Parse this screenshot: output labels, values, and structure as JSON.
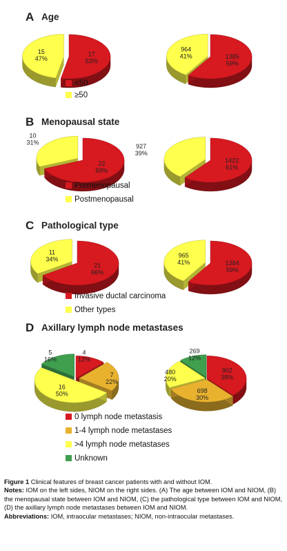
{
  "colors": {
    "red": "#d71920",
    "yellow": "#ffff4d",
    "orange": "#e8b22f",
    "green": "#3f9f4f"
  },
  "chart_data": [
    {
      "type": "pie",
      "letter": "A",
      "title": "Age",
      "legend": [
        {
          "label": "<50",
          "color": "#d71920"
        },
        {
          "label": "≥50",
          "color": "#ffff4d"
        }
      ],
      "pies": [
        {
          "group": "IOM",
          "slices": [
            {
              "category": "<50",
              "value": 17,
              "percent": "53%"
            },
            {
              "category": "≥50",
              "value": 15,
              "percent": "47%"
            }
          ]
        },
        {
          "group": "NIOM",
          "slices": [
            {
              "category": "<50",
              "value": 1385,
              "percent": "59%"
            },
            {
              "category": "≥50",
              "value": 964,
              "percent": "41%"
            }
          ]
        }
      ]
    },
    {
      "type": "pie",
      "letter": "B",
      "title": "Menopausal state",
      "legend": [
        {
          "label": "Premenopausal",
          "color": "#d71920"
        },
        {
          "label": "Postmenopausal",
          "color": "#ffff4d"
        }
      ],
      "pies": [
        {
          "group": "IOM",
          "slices": [
            {
              "category": "Premenopausal",
              "value": 22,
              "percent": "69%"
            },
            {
              "category": "Postmenopausal",
              "value": 10,
              "percent": "31%"
            }
          ]
        },
        {
          "group": "NIOM",
          "slices": [
            {
              "category": "Premenopausal",
              "value": 1422,
              "percent": "61%"
            },
            {
              "category": "Postmenopausal",
              "value": 927,
              "percent": "39%"
            }
          ]
        }
      ]
    },
    {
      "type": "pie",
      "letter": "C",
      "title": "Pathological type",
      "legend": [
        {
          "label": "Invasive ductal carcinoma",
          "color": "#d71920"
        },
        {
          "label": "Other types",
          "color": "#ffff4d"
        }
      ],
      "pies": [
        {
          "group": "IOM",
          "slices": [
            {
              "category": "Invasive ductal carcinoma",
              "value": 21,
              "percent": "66%"
            },
            {
              "category": "Other types",
              "value": 11,
              "percent": "34%"
            }
          ]
        },
        {
          "group": "NIOM",
          "slices": [
            {
              "category": "Invasive ductal carcinoma",
              "value": 1384,
              "percent": "59%"
            },
            {
              "category": "Other types",
              "value": 965,
              "percent": "41%"
            }
          ]
        }
      ]
    },
    {
      "type": "pie",
      "letter": "D",
      "title": "Axillary lymph node metastases",
      "legend": [
        {
          "label": "0 lymph node metastasis",
          "color": "#d71920"
        },
        {
          "label": "1-4 lymph node metastases",
          "color": "#e8b22f"
        },
        {
          "label": ">4 lymph node metastases",
          "color": "#ffff4d"
        },
        {
          "label": "Unknown",
          "color": "#3f9f4f"
        }
      ],
      "pies": [
        {
          "group": "IOM",
          "slices": [
            {
              "category": "0 lymph node metastasis",
              "value": 4,
              "percent": "12%"
            },
            {
              "category": "1-4 lymph node metastases",
              "value": 7,
              "percent": "22%"
            },
            {
              "category": ">4 lymph node metastases",
              "value": 16,
              "percent": "50%"
            },
            {
              "category": "Unknown",
              "value": 5,
              "percent": "16%"
            }
          ]
        },
        {
          "group": "NIOM",
          "slices": [
            {
              "category": "0 lymph node metastasis",
              "value": 902,
              "percent": "38%"
            },
            {
              "category": "1-4 lymph node metastases",
              "value": 698,
              "percent": "30%"
            },
            {
              "category": ">4 lymph node metastases",
              "value": 480,
              "percent": "20%"
            },
            {
              "category": "Unknown",
              "value": 269,
              "percent": "12%"
            }
          ]
        }
      ]
    }
  ],
  "caption": {
    "figure_label": "Figure 1",
    "figure_title": "Clinical features of breast cancer patients with and without IOM.",
    "notes_label": "Notes:",
    "notes_text": "IOM on the left sides, NIOM on the right sides. (A) The age between IOM and NIOM, (B) the menopausal state between IOM and NIOM, (C) the pathological type between IOM and NIOM, (D) the axillary lymph node metastases between IOM and NIOM.",
    "abbr_label": "Abbreviations:",
    "abbr_text": "IOM, intraocular metastases; NIOM, non-intraocular metastases."
  }
}
